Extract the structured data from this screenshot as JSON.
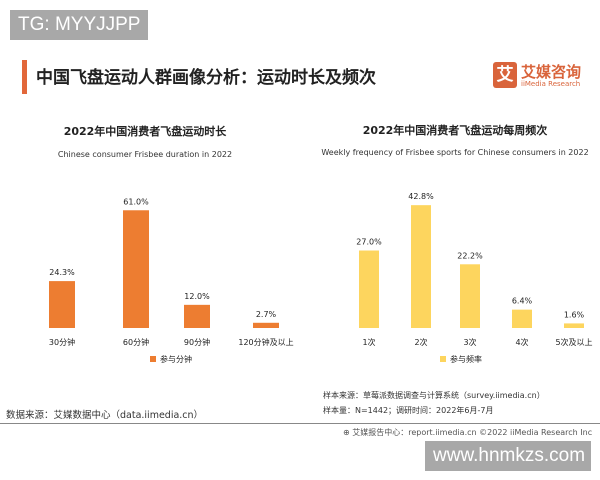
{
  "watermarks": {
    "top_left": "TG: MYYJJPP",
    "bottom_right": "www.hnmkzs.com"
  },
  "header": {
    "title": "中国飞盘运动人群画像分析：运动时长及频次",
    "logo_mark": "艾",
    "logo_cn": "艾媒咨询",
    "logo_en": "iiMedia Research"
  },
  "colors": {
    "accent": "#e2673a",
    "duration_bar": "#ed7d31",
    "frequency_bar": "#fdd55e"
  },
  "chart_data": [
    {
      "type": "bar",
      "title": "2022年中国消费者飞盘运动时长",
      "subtitle": "Chinese consumer Frisbee duration in 2022",
      "categories": [
        "30分钟",
        "60分钟",
        "90分钟",
        "120分钟及以上"
      ],
      "series": [
        {
          "name": "参与分钟",
          "values": [
            24.3,
            61.0,
            12.0,
            2.7
          ]
        }
      ],
      "data_labels": [
        "24.3%",
        "61.0%",
        "12.0%",
        "2.7%"
      ],
      "legend": "bottom",
      "grid": false
    },
    {
      "type": "bar",
      "title": "2022年中国消费者飞盘运动每周频次",
      "subtitle": "Weekly frequency of Frisbee sports for Chinese consumers in 2022",
      "categories": [
        "1次",
        "2次",
        "3次",
        "4次",
        "5次及以上"
      ],
      "series": [
        {
          "name": "参与频率",
          "values": [
            27.0,
            42.8,
            22.2,
            6.4,
            1.6
          ]
        }
      ],
      "data_labels": [
        "27.0%",
        "42.8%",
        "22.2%",
        "6.4%",
        "1.6%"
      ],
      "legend": "bottom",
      "grid": false
    }
  ],
  "footer": {
    "data_source": "数据来源：艾媒数据中心（data.iimedia.cn）",
    "sample_source": "样本来源：草莓派数据调查与计算系统（survey.iimedia.cn）",
    "sample_size": "样本量：N=1442；调研时间：2022年6月-7月",
    "report_center": "艾媒报告中心：report.iimedia.cn  ©2022 iiMedia Research Inc"
  }
}
